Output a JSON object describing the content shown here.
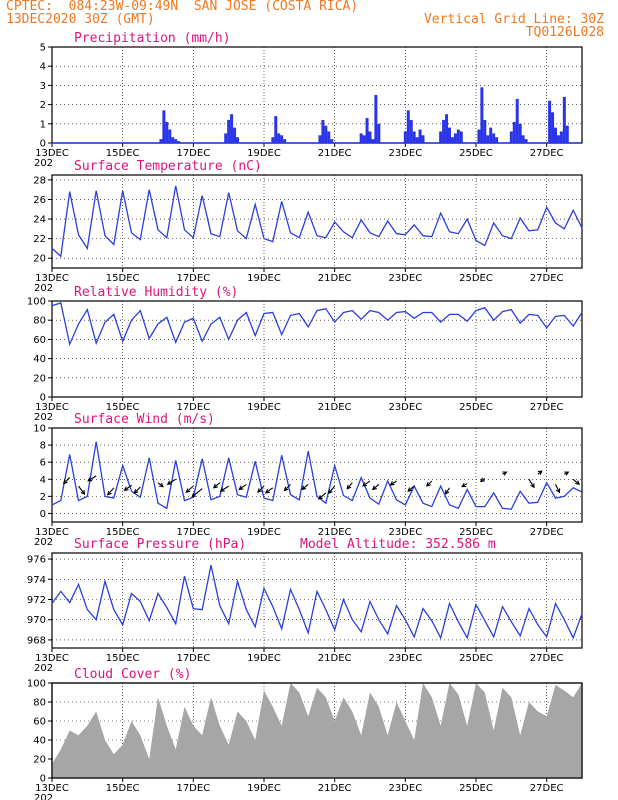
{
  "header": {
    "line1_left": "CPTEC:  084:23W-09:49N  SAN JOSE (COSTA RICA)",
    "line2_left": "13DEC2020 30Z (GMT)",
    "line2_right": "Vertical Grid Line: 30Z",
    "line3_right": "TQ0126L028"
  },
  "colors": {
    "header": "#f07820",
    "title": "#e0147a",
    "line": "#2b3fe0",
    "bar": "#2a34e8",
    "cloud": "#a6a6a6",
    "arrow": "#000000"
  },
  "x_axis": {
    "start": "2020-12-13 06Z",
    "end": "2020-12-28 06Z",
    "tick_labels": [
      "13DEC",
      "15DEC",
      "17DEC",
      "19DEC",
      "21DEC",
      "23DEC",
      "25DEC",
      "27DEC"
    ],
    "year_fragment": "202"
  },
  "chart_data": [
    {
      "type": "bar",
      "title": "Precipitation (mm/h)",
      "ylim": [
        0,
        5
      ],
      "yticks": [
        "0",
        "1",
        "2",
        "3",
        "4",
        "5"
      ],
      "x_unit": "hours after 13DEC 06Z",
      "x": [
        74,
        76,
        78,
        80,
        82,
        84,
        86,
        118,
        120,
        122,
        124,
        126,
        150,
        152,
        154,
        156,
        158,
        182,
        184,
        186,
        188,
        190,
        210,
        212,
        214,
        216,
        218,
        220,
        222,
        240,
        242,
        244,
        246,
        248,
        250,
        252,
        264,
        266,
        268,
        270,
        272,
        274,
        276,
        278,
        290,
        292,
        294,
        296,
        298,
        300,
        302,
        312,
        314,
        316,
        318,
        320,
        322,
        338,
        340,
        342,
        344,
        346,
        348,
        350
      ],
      "values": [
        0.2,
        1.7,
        1.1,
        0.7,
        0.3,
        0.2,
        0.1,
        0.5,
        1.2,
        1.5,
        0.8,
        0.3,
        0.3,
        1.4,
        0.5,
        0.4,
        0.2,
        0.4,
        1.2,
        0.9,
        0.6,
        0.2,
        0.5,
        0.4,
        1.3,
        0.6,
        0.2,
        2.5,
        1.0,
        0.6,
        1.7,
        1.2,
        0.6,
        0.3,
        0.7,
        0.4,
        0.6,
        1.2,
        1.5,
        0.8,
        0.3,
        0.5,
        0.7,
        0.6,
        0.7,
        2.9,
        1.2,
        0.4,
        0.8,
        0.5,
        0.3,
        0.6,
        1.1,
        2.3,
        1.0,
        0.4,
        0.2,
        2.2,
        1.6,
        0.8,
        0.4,
        0.6,
        2.4,
        0.9
      ]
    },
    {
      "type": "line",
      "title": "Surface Temperature (nC)",
      "ylim": [
        19,
        28.5
      ],
      "yticks": [
        "20",
        "22",
        "24",
        "26",
        "28"
      ],
      "x_unit": "hours after 13DEC 06Z",
      "x": [
        0,
        6,
        12,
        18,
        24,
        30,
        36,
        42,
        48,
        54,
        60,
        66,
        72,
        78,
        84,
        90,
        96,
        102,
        108,
        114,
        120,
        126,
        132,
        138,
        144,
        150,
        156,
        162,
        168,
        174,
        180,
        186,
        192,
        198,
        204,
        210,
        216,
        222,
        228,
        234,
        240,
        246,
        252,
        258,
        264,
        270,
        276,
        282,
        288,
        294,
        300,
        306,
        312,
        318,
        324,
        330,
        336,
        342,
        348,
        354,
        360
      ],
      "values": [
        21.0,
        20.2,
        26.8,
        22.4,
        21.0,
        26.9,
        22.3,
        21.4,
        26.9,
        22.6,
        21.9,
        27.0,
        22.9,
        22.1,
        27.4,
        22.9,
        22.1,
        26.4,
        22.5,
        22.2,
        26.7,
        22.8,
        22.0,
        25.5,
        22.0,
        21.7,
        25.8,
        22.6,
        22.1,
        24.7,
        22.3,
        22.1,
        23.7,
        22.7,
        22.1,
        23.9,
        22.6,
        22.2,
        23.8,
        22.5,
        22.4,
        23.4,
        22.3,
        22.2,
        24.6,
        22.7,
        22.5,
        24.0,
        21.8,
        21.3,
        23.6,
        22.3,
        22.0,
        24.1,
        22.8,
        22.9,
        25.2,
        23.6,
        23.0,
        24.9,
        23.1
      ]
    },
    {
      "type": "line",
      "title": "Relative Humidity (%)",
      "ylim": [
        0,
        100
      ],
      "yticks": [
        "0",
        "20",
        "40",
        "60",
        "80",
        "100"
      ],
      "x_unit": "hours after 13DEC 06Z",
      "x": [
        0,
        6,
        12,
        18,
        24,
        30,
        36,
        42,
        48,
        54,
        60,
        66,
        72,
        78,
        84,
        90,
        96,
        102,
        108,
        114,
        120,
        126,
        132,
        138,
        144,
        150,
        156,
        162,
        168,
        174,
        180,
        186,
        192,
        198,
        204,
        210,
        216,
        222,
        228,
        234,
        240,
        246,
        252,
        258,
        264,
        270,
        276,
        282,
        288,
        294,
        300,
        306,
        312,
        318,
        324,
        330,
        336,
        342,
        348,
        354,
        360
      ],
      "values": [
        95,
        98,
        55,
        76,
        91,
        56,
        78,
        86,
        58,
        80,
        90,
        61,
        76,
        83,
        57,
        78,
        82,
        58,
        76,
        83,
        60,
        80,
        88,
        64,
        87,
        88,
        65,
        85,
        87,
        73,
        90,
        92,
        78,
        88,
        90,
        81,
        90,
        88,
        80,
        88,
        89,
        82,
        88,
        88,
        78,
        86,
        86,
        79,
        90,
        93,
        80,
        89,
        91,
        77,
        86,
        85,
        72,
        84,
        85,
        74,
        88
      ]
    },
    {
      "type": "line",
      "title": "Surface Wind (m/s)",
      "ylim": [
        -1,
        10
      ],
      "yticks": [
        "0",
        "2",
        "4",
        "6",
        "8",
        "10"
      ],
      "x_unit": "hours after 13DEC 06Z",
      "x": [
        0,
        6,
        12,
        18,
        24,
        30,
        36,
        42,
        48,
        54,
        60,
        66,
        72,
        78,
        84,
        90,
        96,
        102,
        108,
        114,
        120,
        126,
        132,
        138,
        144,
        150,
        156,
        162,
        168,
        174,
        180,
        186,
        192,
        198,
        204,
        210,
        216,
        222,
        228,
        234,
        240,
        246,
        252,
        258,
        264,
        270,
        276,
        282,
        288,
        294,
        300,
        306,
        312,
        318,
        324,
        330,
        336,
        342,
        348,
        354,
        360
      ],
      "values": [
        1.0,
        1.5,
        6.9,
        1.5,
        2.0,
        8.4,
        2.0,
        1.8,
        5.6,
        2.6,
        1.9,
        6.5,
        1.2,
        0.6,
        6.2,
        1.5,
        1.9,
        6.4,
        1.6,
        2.0,
        6.5,
        2.2,
        1.9,
        6.1,
        1.8,
        1.5,
        6.8,
        2.2,
        1.6,
        7.3,
        2.0,
        1.2,
        5.6,
        2.1,
        1.5,
        4.2,
        1.8,
        1.1,
        3.8,
        1.6,
        1.0,
        3.2,
        1.2,
        0.8,
        3.2,
        1.0,
        0.6,
        2.8,
        0.8,
        0.8,
        2.4,
        0.6,
        0.5,
        2.6,
        1.2,
        1.3,
        3.6,
        1.8,
        2.0,
        3.0,
        2.5
      ],
      "arrows": {
        "x": [
          12,
          18,
          30,
          42,
          54,
          60,
          72,
          84,
          96,
          102,
          114,
          120,
          132,
          144,
          150,
          162,
          174,
          186,
          192,
          204,
          216,
          222,
          234,
          246,
          258,
          270,
          282,
          294,
          306,
          324,
          330,
          342,
          348,
          354
        ],
        "y": [
          4.2,
          3.2,
          4.4,
          3.0,
          3.3,
          3.1,
          3.6,
          4.0,
          3.2,
          2.9,
          3.6,
          3.2,
          3.4,
          3.2,
          3.0,
          3.4,
          3.4,
          2.4,
          3.2,
          3.6,
          3.8,
          3.4,
          3.8,
          3.2,
          3.8,
          3.0,
          3.5,
          4.1,
          4.6,
          4.0,
          4.6,
          3.4,
          4.6,
          4.0
        ],
        "dx": [
          -6,
          6,
          -8,
          -6,
          -7,
          -6,
          5,
          -8,
          -7,
          -10,
          -6,
          -8,
          -7,
          -6,
          -7,
          -6,
          -6,
          -7,
          -6,
          -5,
          -7,
          -6,
          -6,
          -6,
          -5,
          -4,
          -5,
          -4,
          4,
          5,
          4,
          4,
          4,
          6
        ],
        "dy": [
          6,
          8,
          5,
          7,
          5,
          6,
          4,
          5,
          6,
          8,
          5,
          5,
          5,
          6,
          5,
          6,
          5,
          6,
          7,
          6,
          5,
          5,
          4,
          5,
          5,
          6,
          3,
          3,
          -2,
          8,
          -3,
          8,
          -2,
          5
        ]
      }
    },
    {
      "type": "line",
      "title": "Surface Pressure (hPa)",
      "annotation": "Model Altitude: 352.586 m",
      "ylim": [
        967.2,
        976.6
      ],
      "yticks": [
        "968",
        "970",
        "972",
        "974",
        "976"
      ],
      "x_unit": "hours after 13DEC 06Z",
      "x": [
        0,
        6,
        12,
        18,
        24,
        30,
        36,
        42,
        48,
        54,
        60,
        66,
        72,
        78,
        84,
        90,
        96,
        102,
        108,
        114,
        120,
        126,
        132,
        138,
        144,
        150,
        156,
        162,
        168,
        174,
        180,
        186,
        192,
        198,
        204,
        210,
        216,
        222,
        228,
        234,
        240,
        246,
        252,
        258,
        264,
        270,
        276,
        282,
        288,
        294,
        300,
        306,
        312,
        318,
        324,
        330,
        336,
        342,
        348,
        354,
        360
      ],
      "values": [
        971.6,
        972.8,
        971.7,
        973.5,
        971.0,
        970.0,
        973.8,
        971.0,
        969.5,
        972.6,
        971.8,
        969.9,
        972.6,
        971.2,
        969.6,
        974.3,
        971.1,
        971.0,
        975.4,
        971.4,
        969.6,
        973.8,
        971.0,
        969.3,
        973.1,
        971.3,
        969.1,
        973.0,
        971.0,
        968.7,
        972.8,
        971.0,
        969.0,
        972.0,
        970.0,
        968.8,
        971.8,
        970.0,
        968.6,
        971.4,
        970.0,
        968.3,
        971.1,
        969.9,
        968.2,
        971.6,
        969.8,
        968.2,
        971.5,
        969.9,
        968.3,
        971.3,
        969.8,
        968.4,
        971.1,
        969.5,
        968.3,
        971.6,
        970.0,
        968.2,
        970.6
      ]
    },
    {
      "type": "area",
      "title": "Cloud Cover (%)",
      "ylim": [
        0,
        100
      ],
      "yticks": [
        "0",
        "20",
        "40",
        "60",
        "80",
        "100"
      ],
      "x_unit": "hours after 13DEC 06Z",
      "x": [
        0,
        6,
        12,
        18,
        24,
        30,
        36,
        42,
        48,
        54,
        60,
        66,
        72,
        78,
        84,
        90,
        96,
        102,
        108,
        114,
        120,
        126,
        132,
        138,
        144,
        150,
        156,
        162,
        168,
        174,
        180,
        186,
        192,
        198,
        204,
        210,
        216,
        222,
        228,
        234,
        240,
        246,
        252,
        258,
        264,
        270,
        276,
        282,
        288,
        294,
        300,
        306,
        312,
        318,
        324,
        330,
        336,
        342,
        348,
        354,
        360
      ],
      "values": [
        15,
        30,
        50,
        45,
        55,
        70,
        40,
        25,
        35,
        60,
        45,
        20,
        85,
        55,
        30,
        75,
        55,
        45,
        85,
        55,
        35,
        70,
        60,
        40,
        92,
        75,
        55,
        100,
        90,
        65,
        95,
        85,
        60,
        85,
        70,
        45,
        90,
        75,
        45,
        80,
        60,
        40,
        100,
        85,
        55,
        100,
        88,
        55,
        100,
        90,
        50,
        95,
        85,
        45,
        80,
        70,
        65,
        98,
        92,
        85,
        100
      ]
    }
  ]
}
